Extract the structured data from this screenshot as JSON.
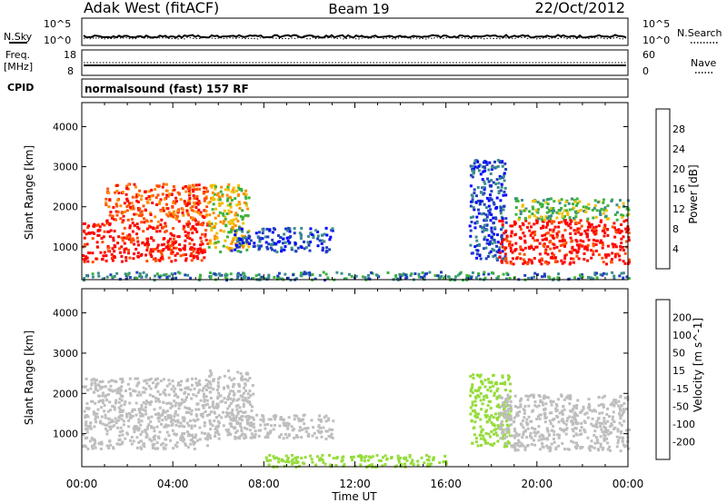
{
  "header": {
    "station": "Adak West (fitACF)",
    "beam": "Beam 19",
    "date": "22/Oct/2012"
  },
  "top_panels": {
    "nsky_label": "N.Sky",
    "nsearch_label": "N.Search",
    "nsky_left_ticks": [
      "10^5",
      "10^0"
    ],
    "nsky_right_ticks": [
      "10^5",
      "10^0"
    ],
    "freq_label": "Freq.",
    "freq_unit": "[MHz]",
    "freq_ticks": [
      "18",
      "8"
    ],
    "nave_label": "Nave",
    "nave_ticks": [
      "60",
      "0"
    ],
    "cpid_label": "CPID",
    "cpid_text": "normalsound (fast) 157 RF"
  },
  "colors": {
    "power_scale": [
      "#0000ff",
      "#2040c0",
      "#3c8c8c",
      "#3cb43c",
      "#f0c000",
      "#ff8c00",
      "#ff5000",
      "#ff0000"
    ],
    "velocity_scale": [
      "#ff0000",
      "#ff5000",
      "#ff9a00",
      "#f0b000",
      "#bebebe",
      "#bebebe",
      "#96dc3c",
      "#3cb43c",
      "#2e8b57",
      "#2040c0",
      "#1a1aff"
    ]
  },
  "chart_data": [
    {
      "type": "heatmap",
      "title": "",
      "xlabel": "Time UT",
      "ylabel": "Slant Range [km]",
      "xlim": [
        "00:00",
        "24:00"
      ],
      "ylim": [
        180,
        4600
      ],
      "x_ticks": [
        "00:00",
        "04:00",
        "08:00",
        "12:00",
        "16:00",
        "20:00",
        "00:00"
      ],
      "y_ticks": [
        1000,
        2000,
        3000,
        4000
      ],
      "colorbar": {
        "label": "Power [dB]",
        "ticks": [
          4,
          8,
          12,
          16,
          20,
          24,
          28
        ],
        "range": [
          0,
          32
        ]
      },
      "regions": [
        {
          "t_start": 0.0,
          "t_end": 5.5,
          "r_low": 650,
          "r_high": 1650,
          "value": 30
        },
        {
          "t_start": 1.0,
          "t_end": 5.5,
          "r_low": 1650,
          "r_high": 2600,
          "value": 26
        },
        {
          "t_start": 5.5,
          "t_end": 7.3,
          "r_low": 900,
          "r_high": 2600,
          "value": 18
        },
        {
          "t_start": 6.5,
          "t_end": 11.0,
          "r_low": 900,
          "r_high": 1500,
          "value": 6
        },
        {
          "t_start": 17.0,
          "t_end": 18.6,
          "r_low": 700,
          "r_high": 3200,
          "value": 6
        },
        {
          "t_start": 18.3,
          "t_end": 24.0,
          "r_low": 600,
          "r_high": 1700,
          "value": 30
        },
        {
          "t_start": 19.0,
          "t_end": 24.0,
          "r_low": 1700,
          "r_high": 2250,
          "value": 14
        },
        {
          "t_start": 0.0,
          "t_end": 24.0,
          "r_low": 200,
          "r_high": 400,
          "value": 10
        }
      ]
    },
    {
      "type": "heatmap",
      "title": "",
      "xlabel": "Time UT",
      "ylabel": "Slant Range [km]",
      "xlim": [
        "00:00",
        "24:00"
      ],
      "ylim": [
        180,
        4600
      ],
      "x_ticks": [
        "00:00",
        "04:00",
        "08:00",
        "12:00",
        "16:00",
        "20:00",
        "00:00"
      ],
      "y_ticks": [
        1000,
        2000,
        3000,
        4000
      ],
      "colorbar": {
        "label": "Velocity [m s^-1]",
        "ticks": [
          200,
          100,
          50,
          15,
          -15,
          -50,
          -100,
          -200
        ],
        "range": [
          -250,
          250
        ]
      },
      "regions": [
        {
          "t_start": 0.0,
          "t_end": 5.5,
          "r_low": 650,
          "r_high": 2400,
          "value": 0
        },
        {
          "t_start": 5.5,
          "t_end": 7.5,
          "r_low": 900,
          "r_high": 2600,
          "value": -30
        },
        {
          "t_start": 6.5,
          "t_end": 11.0,
          "r_low": 900,
          "r_high": 1500,
          "value": 0
        },
        {
          "t_start": 17.0,
          "t_end": 18.8,
          "r_low": 700,
          "r_high": 2500,
          "value": 30
        },
        {
          "t_start": 18.3,
          "t_end": 24.0,
          "r_low": 600,
          "r_high": 2000,
          "value": 0
        },
        {
          "t_start": 8.0,
          "t_end": 16.0,
          "r_low": 200,
          "r_high": 500,
          "value": 30
        }
      ]
    }
  ]
}
